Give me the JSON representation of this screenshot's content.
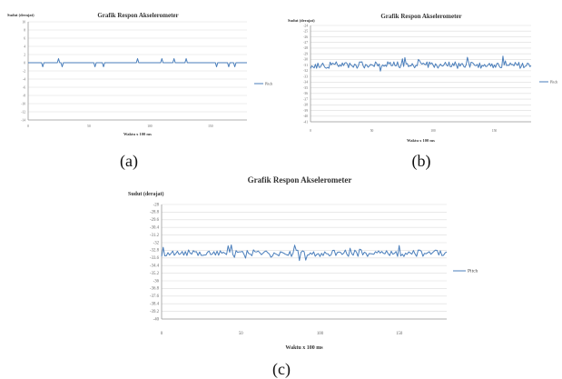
{
  "captions": {
    "a": "(a)",
    "b": "(b)",
    "c": "(c)"
  },
  "colors": {
    "series": "#4a7ebb",
    "grid": "#dcdcdc",
    "axis": "#9a9a9a"
  },
  "chart_data": [
    {
      "id": "a",
      "type": "line",
      "title": "Grafik Respon Akselerometer",
      "ylabel": "Sudut (derajat)",
      "xlabel": "Waktu x 100 ms",
      "ylim": [
        -14,
        10
      ],
      "yticks": [
        10,
        8,
        6,
        4,
        2,
        0,
        -2,
        -4,
        -6,
        -8,
        -10,
        -12,
        -14
      ],
      "ytick_labels": [
        "10",
        "8",
        "6",
        "4",
        "2",
        "0",
        "-2",
        "-4",
        "-6",
        "-8",
        "-10",
        "-12",
        "-14"
      ],
      "xlim": [
        0,
        180
      ],
      "xticks": [
        0,
        50,
        100,
        150
      ],
      "xtick_labels": [
        "0",
        "50",
        "100",
        "150"
      ],
      "grid": true,
      "legend_position": "right",
      "series": [
        {
          "name": "Pitch",
          "baseline": 0,
          "spikes": [
            [
              12,
              -1
            ],
            [
              25,
              1
            ],
            [
              28,
              -1
            ],
            [
              55,
              -1
            ],
            [
              62,
              -1
            ],
            [
              90,
              1
            ],
            [
              110,
              1
            ],
            [
              120,
              1
            ],
            [
              130,
              1
            ],
            [
              155,
              -1
            ],
            [
              165,
              -1
            ],
            [
              170,
              -1
            ]
          ]
        }
      ]
    },
    {
      "id": "b",
      "type": "line",
      "title": "Grafik Respon Akselerometer",
      "ylabel": "Sudut (derajat)",
      "xlabel": "Waktu x 100 ms",
      "ylim": [
        -41,
        -24
      ],
      "yticks": [
        -24,
        -25,
        -26,
        -27,
        -28,
        -29,
        -30,
        -31,
        -32,
        -33,
        -34,
        -35,
        -36,
        -37,
        -38,
        -39,
        -40,
        -41
      ],
      "ytick_labels": [
        "-24",
        "-25",
        "-26",
        "-27",
        "-28",
        "-29",
        "-30",
        "-31",
        "-32",
        "-33",
        "-34",
        "-35",
        "-36",
        "-37",
        "-38",
        "-39",
        "-40",
        "-41"
      ],
      "xlim": [
        0,
        180
      ],
      "xticks": [
        0,
        50,
        100,
        150
      ],
      "xtick_labels": [
        "0",
        "50",
        "100",
        "150"
      ],
      "grid": true,
      "legend_position": "right",
      "series": [
        {
          "name": "Pitch",
          "baseline": -31,
          "noise": 0.6
        }
      ]
    },
    {
      "id": "c",
      "type": "line",
      "title": "Grafik Respon Akselerometer",
      "ylabel": "Sudut (derajat)",
      "xlabel": "Waktu x 100 ms",
      "ylim": [
        -40,
        -28
      ],
      "yticks": [
        -28,
        -28.8,
        -29.6,
        -30.4,
        -31.2,
        -32,
        -32.8,
        -33.6,
        -34.4,
        -35.2,
        -36,
        -36.8,
        -37.6,
        -38.4,
        -39.2,
        -40
      ],
      "ytick_labels": [
        "-28",
        "-28.8",
        "-29.6",
        "-30.4",
        "-31.2",
        "-32",
        "-32.8",
        "-33.6",
        "-34.4",
        "-35.2",
        "-36",
        "-36.8",
        "-37.6",
        "-38.4",
        "-39.2",
        "-40"
      ],
      "xlim": [
        0,
        180
      ],
      "xticks": [
        0,
        50,
        100,
        150
      ],
      "xtick_labels": [
        "0",
        "50",
        "100",
        "150"
      ],
      "grid": true,
      "legend_position": "right",
      "series": [
        {
          "name": "Pitch",
          "baseline": -33.1,
          "noise": 0.35
        }
      ]
    }
  ]
}
